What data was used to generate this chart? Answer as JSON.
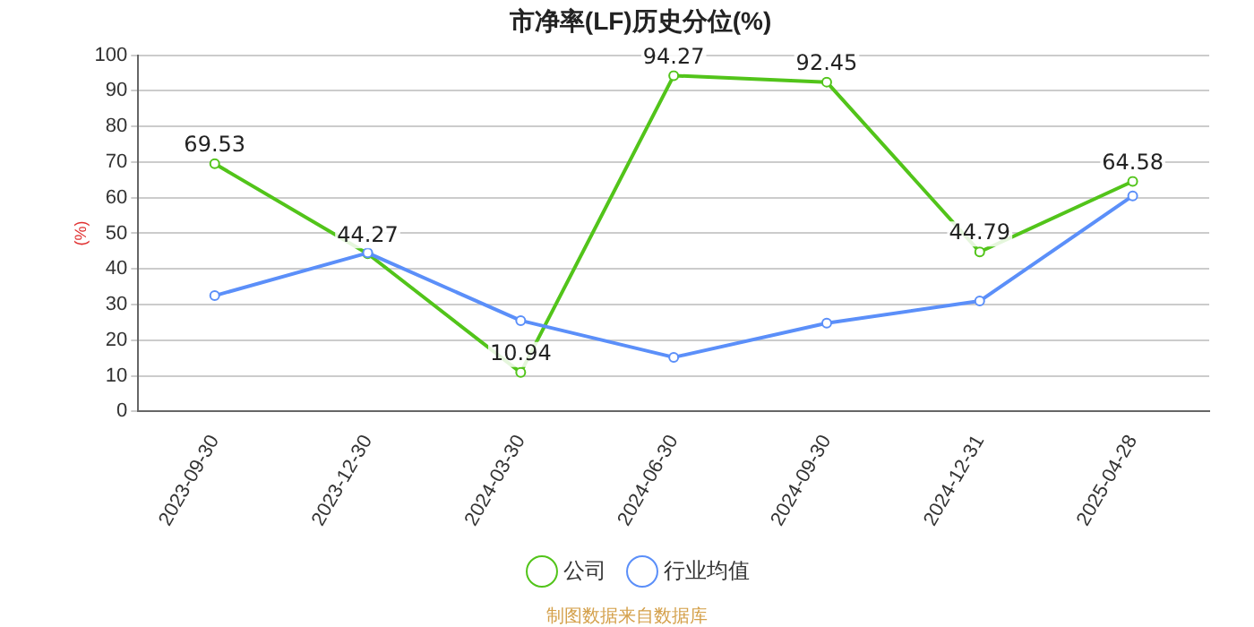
{
  "chart_data": {
    "type": "line",
    "title": "市净率(LF)历史分位(%)",
    "ylabel": "(%)",
    "categories": [
      "2023-09-30",
      "2023-12-30",
      "2024-03-30",
      "2024-06-30",
      "2024-09-30",
      "2024-12-31",
      "2025-04-28"
    ],
    "series": [
      {
        "name": "公司",
        "color": "#52c41a",
        "values": [
          69.53,
          44.27,
          10.94,
          94.27,
          92.45,
          44.79,
          64.58
        ],
        "value_labels": [
          "69.53",
          "44.27",
          "10.94",
          "94.27",
          "92.45",
          "44.79",
          "64.58"
        ]
      },
      {
        "name": "行业均值",
        "color": "#5b8ff9",
        "values": [
          32.5,
          44.5,
          25.5,
          15.2,
          24.8,
          31,
          60.5
        ]
      }
    ],
    "ylim": [
      0,
      100
    ],
    "yticks": [
      0,
      10,
      20,
      30,
      40,
      50,
      60,
      70,
      80,
      90,
      100
    ],
    "grid": "y",
    "legend": "bottom",
    "marker": "circle",
    "line_style": "solid",
    "annotations": [
      "制图数据来自数据库"
    ]
  }
}
